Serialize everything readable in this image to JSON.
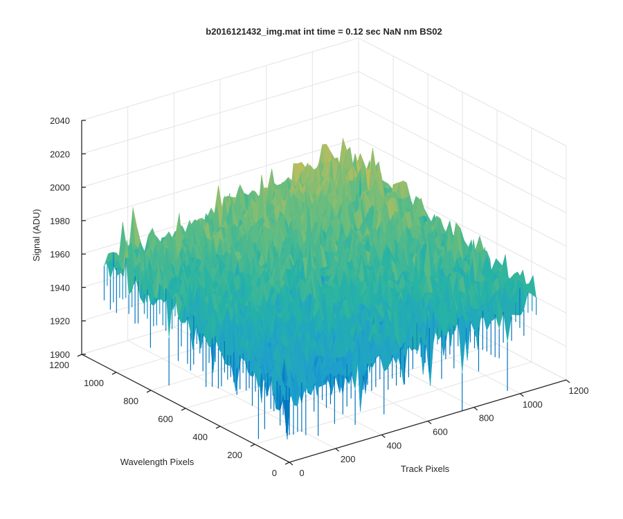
{
  "chart_data": {
    "type": "surface",
    "title": "b2016121432_img.mat int time = 0.12 sec  NaN nm BS02",
    "xlabel": "Track Pixels",
    "ylabel": "Wavelength Pixels",
    "zlabel": "Signal (ADU)",
    "xlim": [
      0,
      1200
    ],
    "ylim": [
      0,
      1200
    ],
    "zlim": [
      1900,
      2040
    ],
    "x_ticks": [
      "0",
      "200",
      "400",
      "600",
      "800",
      "1000",
      "1200"
    ],
    "y_ticks": [
      "0",
      "200",
      "400",
      "600",
      "800",
      "1000",
      "1200"
    ],
    "z_ticks": [
      "1900",
      "1920",
      "1940",
      "1960",
      "1980",
      "2000",
      "2020",
      "2040"
    ],
    "grid": true,
    "colormap": [
      "#0072bd",
      "#1e9fce",
      "#27b3a4",
      "#6cbd7c",
      "#c3bd5a",
      "#e8c14a"
    ],
    "surface": {
      "x_range": [
        0,
        1070
      ],
      "y_range": [
        0,
        1070
      ],
      "typical_signal_min": 1935,
      "typical_signal_max": 1985,
      "peak_signal": 2005,
      "deepest_dip": 1905,
      "trend": "higher signal toward high Track Pixels and high Wavelength Pixels corner; lower toward Wavelength Pixels = 0 edge"
    }
  }
}
